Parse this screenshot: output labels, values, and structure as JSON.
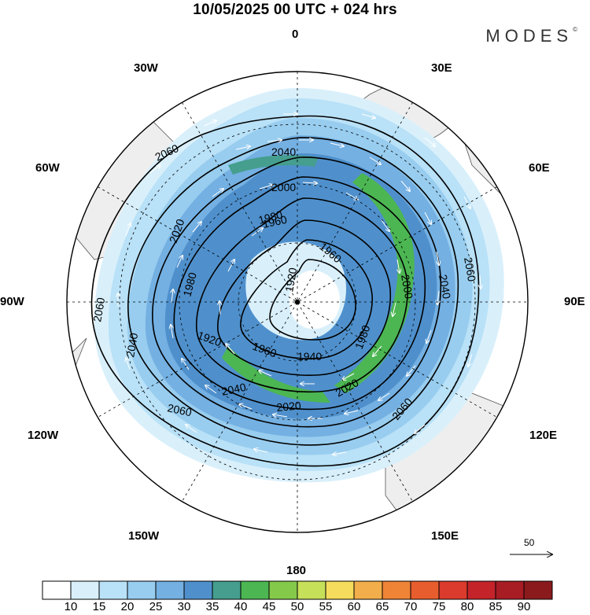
{
  "title": "10/05/2025  00 UTC  + 024 hrs",
  "brand": "MODES",
  "brand_mark": "©",
  "longitude_labels": [
    "0",
    "30E",
    "60E",
    "90E",
    "120E",
    "150E",
    "180",
    "150W",
    "120W",
    "90W",
    "60W",
    "30W"
  ],
  "contour_labels": [
    "2060",
    "2040",
    "2000",
    "1960",
    "2020",
    "1980",
    "1920",
    "2060",
    "2060",
    "2040",
    "1960",
    "2000",
    "1960",
    "1980",
    "1940",
    "2020",
    "2040",
    "2060",
    "2060",
    "2040",
    "2020",
    "1980",
    "1920"
  ],
  "legend": {
    "labels": [
      "10",
      "15",
      "20",
      "25",
      "30",
      "35",
      "40",
      "45",
      "50",
      "55",
      "60",
      "65",
      "70",
      "75",
      "80",
      "85",
      "90"
    ],
    "colors": [
      "#ffffff",
      "#d9f0fb",
      "#b9e1f7",
      "#98cdef",
      "#74b0e2",
      "#4f90cc",
      "#459e8e",
      "#4cb652",
      "#85c94a",
      "#c6e05a",
      "#f6dc5c",
      "#f2ae4a",
      "#ef8436",
      "#e85d2e",
      "#da3b2c",
      "#c4232a",
      "#a81c24",
      "#8b1a1c"
    ]
  },
  "vector_scale": "50",
  "colors": {
    "land": "#eeeeee",
    "coast": "#555555"
  }
}
